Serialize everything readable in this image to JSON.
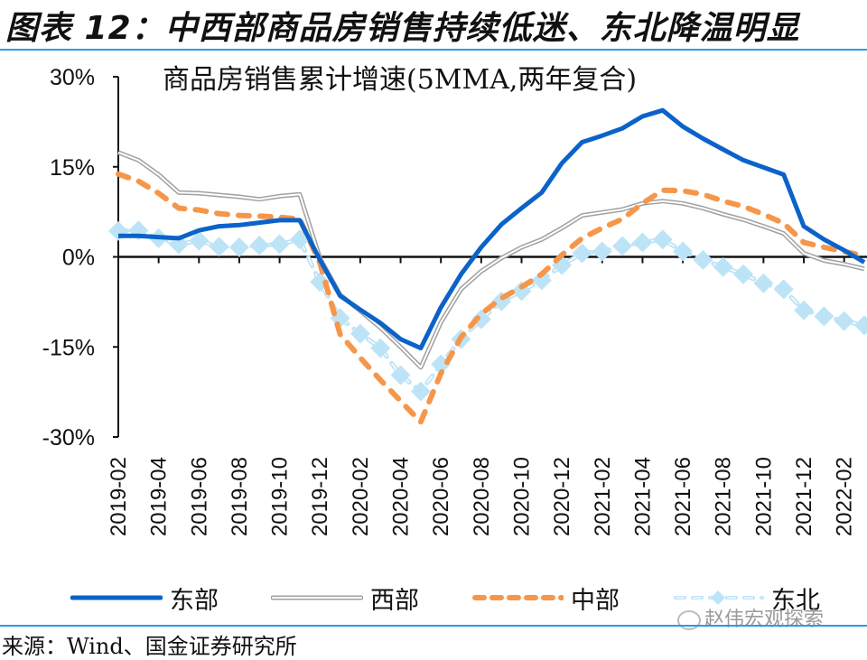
{
  "figure": {
    "title": "图表 12：中西部商品房销售持续低迷、东北降温明显",
    "source": "来源：Wind、国金证券研究所",
    "watermark": "赵伟宏观探索"
  },
  "colors": {
    "accent_rule": "#1fa0e6",
    "east": "#0b63c9",
    "west": "#a0a0a0",
    "central": "#f5964a",
    "northeast": "#bde3f7"
  },
  "chart_data": {
    "type": "line",
    "title": "商品房销售累计增速(5MMA,两年复合)",
    "xlabel": "",
    "ylabel": "",
    "ylim": [
      -30,
      30
    ],
    "yticks": [
      30,
      15,
      0,
      -15,
      -30
    ],
    "ytick_labels": [
      "30%",
      "15%",
      "0%",
      "-15%",
      "-30%"
    ],
    "grid": false,
    "legend_position": "bottom",
    "x": [
      "2019-02",
      "2019-03",
      "2019-04",
      "2019-05",
      "2019-06",
      "2019-07",
      "2019-08",
      "2019-09",
      "2019-10",
      "2019-11",
      "2019-12",
      "2020-01",
      "2020-02",
      "2020-03",
      "2020-04",
      "2020-05",
      "2020-06",
      "2020-07",
      "2020-08",
      "2020-09",
      "2020-10",
      "2020-11",
      "2020-12",
      "2021-01",
      "2021-02",
      "2021-03",
      "2021-04",
      "2021-05",
      "2021-06",
      "2021-07",
      "2021-08",
      "2021-09",
      "2021-10",
      "2021-11",
      "2021-12",
      "2022-01",
      "2022-02",
      "2022-03"
    ],
    "xtick_labels": [
      "2019-02",
      "2019-04",
      "2019-06",
      "2019-08",
      "2019-10",
      "2019-12",
      "2020-02",
      "2020-04",
      "2020-06",
      "2020-08",
      "2020-10",
      "2020-12",
      "2021-02",
      "2021-04",
      "2021-06",
      "2021-08",
      "2021-10",
      "2021-12",
      "2022-02"
    ],
    "series": [
      {
        "name": "东部",
        "style": "solid",
        "values": [
          3.5,
          3.5,
          3.3,
          3.1,
          4.4,
          5.1,
          5.3,
          5.7,
          6.1,
          6.1,
          -0.5,
          -6.5,
          -8.8,
          -11.0,
          -13.7,
          -15.2,
          -8.4,
          -2.9,
          1.6,
          5.4,
          8.1,
          10.7,
          15.6,
          19.1,
          20.2,
          21.4,
          23.4,
          24.4,
          21.7,
          19.7,
          17.9,
          16.1,
          14.9,
          13.7,
          5.1,
          2.9,
          1.1,
          -0.9
        ]
      },
      {
        "name": "西部",
        "style": "double",
        "values": [
          17.4,
          16.1,
          13.7,
          10.7,
          10.6,
          10.3,
          10.0,
          9.6,
          10.1,
          10.4,
          -0.2,
          -6.3,
          -9.0,
          -11.8,
          -15.0,
          -18.4,
          -10.9,
          -5.4,
          -2.4,
          -0.2,
          1.6,
          2.9,
          4.8,
          6.9,
          7.4,
          7.9,
          8.9,
          9.3,
          8.9,
          8.1,
          7.1,
          6.2,
          5.1,
          3.9,
          0.6,
          -0.6,
          -1.2,
          -2.0
        ]
      },
      {
        "name": "中部",
        "style": "dashed",
        "values": [
          13.8,
          12.6,
          10.6,
          8.1,
          7.8,
          7.2,
          6.9,
          6.8,
          6.6,
          6.3,
          -1.0,
          -12.9,
          -16.8,
          -20.5,
          -24.0,
          -27.5,
          -19.4,
          -13.4,
          -9.5,
          -6.9,
          -5.0,
          -2.9,
          0.3,
          3.1,
          4.8,
          6.3,
          8.9,
          11.1,
          11.0,
          10.4,
          9.3,
          8.4,
          7.1,
          5.6,
          2.4,
          1.6,
          0.9,
          0.2
        ]
      },
      {
        "name": "东北",
        "style": "dashed-diamond",
        "values": [
          4.3,
          4.4,
          3.1,
          2.1,
          2.7,
          1.7,
          1.6,
          1.9,
          2.1,
          2.9,
          -4.2,
          -10.2,
          -12.8,
          -15.2,
          -19.7,
          -22.4,
          -17.9,
          -13.7,
          -10.4,
          -7.4,
          -5.7,
          -3.9,
          -1.4,
          0.6,
          0.9,
          1.8,
          2.4,
          2.9,
          0.9,
          -0.5,
          -1.7,
          -2.9,
          -4.4,
          -5.4,
          -8.9,
          -9.9,
          -10.7,
          -11.4
        ]
      }
    ]
  }
}
